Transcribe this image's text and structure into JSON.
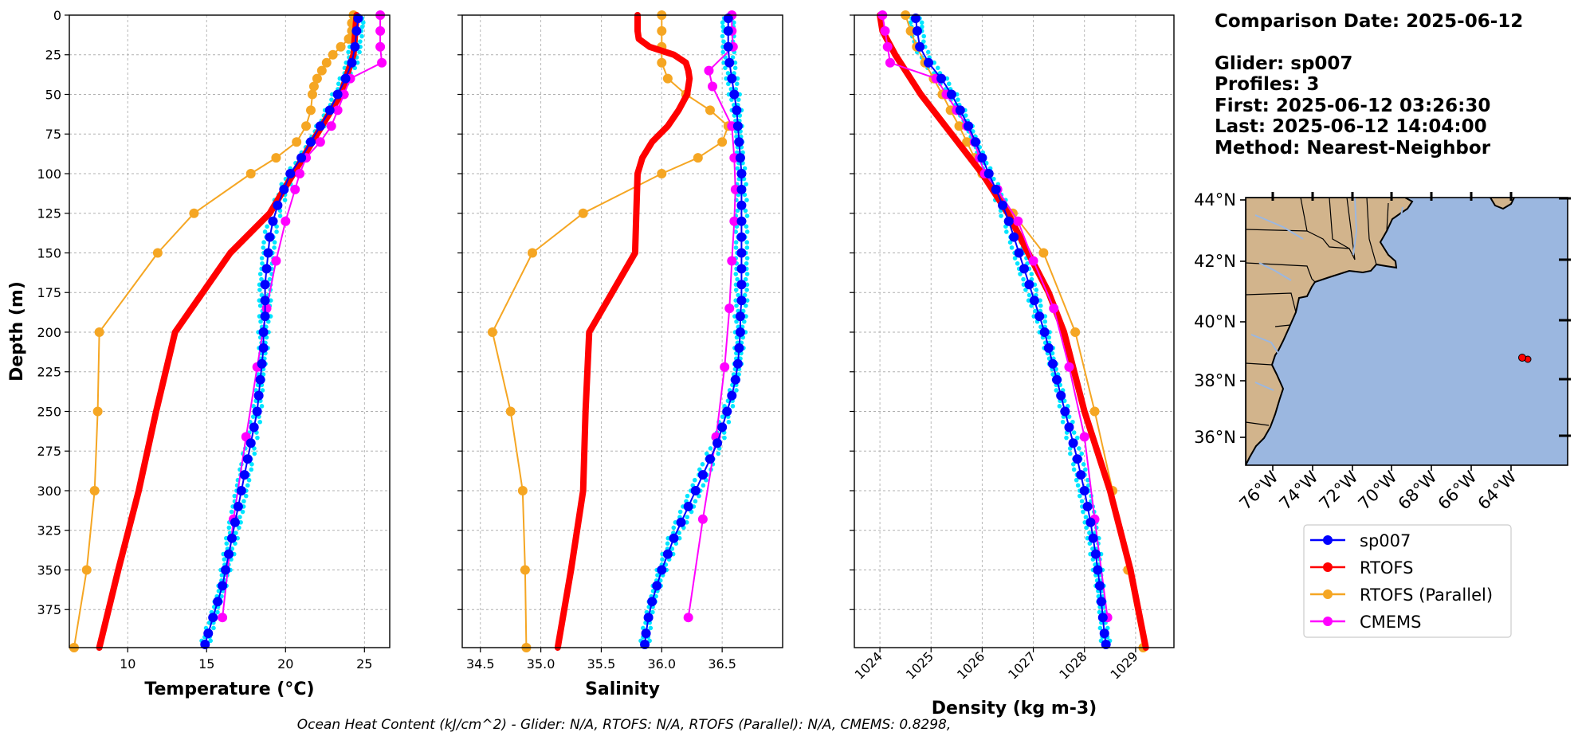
{
  "info": {
    "comparison_date": "Comparison Date: 2025-06-12",
    "glider": "Glider: sp007",
    "profiles": "Profiles: 3",
    "first": "First: 2025-06-12 03:26:30",
    "last": "Last: 2025-06-12 14:04:00",
    "method": "Method: Nearest-Neighbor"
  },
  "footer": "Ocean Heat Content (kJ/cm^2) - Glider: N/A,  RTOFS: N/A,  RTOFS (Parallel): N/A,  CMEMS: 0.8298,",
  "colors": {
    "glider": "#0000ff",
    "glider_profiles": "#00e5ff",
    "rtofs": "#ff0000",
    "rtofs_parallel": "#f5a623",
    "cmems": "#ff00ff",
    "grid": "#b0b0b0",
    "land": "#d2b48c",
    "ocean": "#9bb7e0"
  },
  "chart_data": [
    {
      "type": "line",
      "xlabel": "Temperature (°C)",
      "ylabel": "Depth (m)",
      "xlim": [
        6.3,
        26.6
      ],
      "ylim": [
        399,
        0
      ],
      "xticks": [
        "10",
        "15",
        "20",
        "25"
      ],
      "yticks": [
        "0",
        "25",
        "50",
        "75",
        "100",
        "125",
        "150",
        "175",
        "200",
        "225",
        "250",
        "275",
        "300",
        "325",
        "350",
        "375"
      ],
      "grid": true,
      "series": [
        {
          "name": "sp007",
          "depth": [
            2,
            10,
            20,
            30,
            40,
            50,
            60,
            70,
            80,
            90,
            100,
            110,
            120,
            130,
            140,
            150,
            160,
            170,
            180,
            190,
            200,
            210,
            220,
            230,
            240,
            250,
            260,
            270,
            280,
            290,
            300,
            310,
            320,
            330,
            340,
            350,
            360,
            370,
            380,
            390,
            397
          ],
          "values": [
            24.6,
            24.5,
            24.4,
            24.2,
            23.8,
            23.3,
            22.8,
            22.2,
            21.6,
            21.0,
            20.3,
            19.9,
            19.5,
            19.2,
            19.0,
            18.9,
            18.8,
            18.7,
            18.7,
            18.7,
            18.6,
            18.6,
            18.5,
            18.4,
            18.3,
            18.2,
            18.0,
            17.8,
            17.6,
            17.4,
            17.2,
            17.0,
            16.8,
            16.6,
            16.4,
            16.2,
            16.0,
            15.7,
            15.4,
            15.1,
            14.9
          ]
        },
        {
          "name": "RTOFS",
          "depth": [
            0,
            25,
            50,
            75,
            100,
            125,
            150,
            200,
            250,
            300,
            350,
            399
          ],
          "values": [
            24.5,
            24.3,
            23.5,
            22.0,
            20.5,
            19.0,
            16.5,
            13.0,
            11.8,
            10.7,
            9.4,
            8.2
          ]
        },
        {
          "name": "RTOFS (Parallel)",
          "depth": [
            0,
            5,
            10,
            15,
            20,
            25,
            30,
            35,
            40,
            45,
            50,
            60,
            70,
            80,
            90,
            100,
            125,
            150,
            200,
            250,
            300,
            350,
            399
          ],
          "values": [
            24.3,
            24.2,
            24.2,
            24.0,
            23.5,
            23.0,
            22.6,
            22.3,
            22.0,
            21.8,
            21.7,
            21.6,
            21.3,
            20.7,
            19.4,
            17.8,
            14.2,
            11.9,
            8.2,
            8.1,
            7.9,
            7.4,
            6.6
          ]
        },
        {
          "name": "CMEMS",
          "depth": [
            0,
            10,
            20,
            30,
            40,
            50,
            60,
            70,
            80,
            90,
            100,
            110,
            130,
            155,
            185,
            222,
            266,
            318,
            380
          ],
          "values": [
            26.0,
            26.0,
            26.0,
            26.1,
            24.1,
            23.7,
            23.3,
            22.9,
            22.2,
            21.3,
            20.9,
            20.6,
            20.0,
            19.4,
            18.8,
            18.2,
            17.5,
            16.7,
            16.0
          ]
        }
      ]
    },
    {
      "type": "line",
      "xlabel": "Salinity",
      "ylabel": "Depth (m)",
      "xlim": [
        34.35,
        37.0
      ],
      "ylim": [
        399,
        0
      ],
      "xticks": [
        "34.5",
        "35.0",
        "35.5",
        "36.0",
        "36.5"
      ],
      "grid": true,
      "series": [
        {
          "name": "sp007",
          "depth": [
            2,
            10,
            20,
            30,
            40,
            50,
            60,
            70,
            80,
            90,
            100,
            110,
            120,
            130,
            140,
            150,
            160,
            170,
            180,
            190,
            200,
            210,
            220,
            230,
            240,
            250,
            260,
            270,
            280,
            290,
            300,
            310,
            320,
            330,
            340,
            350,
            360,
            370,
            380,
            390,
            397
          ],
          "values": [
            36.55,
            36.55,
            36.55,
            36.56,
            36.58,
            36.6,
            36.62,
            36.63,
            36.64,
            36.65,
            36.66,
            36.66,
            36.66,
            36.66,
            36.66,
            36.66,
            36.66,
            36.66,
            36.66,
            36.65,
            36.65,
            36.64,
            36.63,
            36.61,
            36.58,
            36.54,
            36.5,
            36.46,
            36.4,
            36.34,
            36.28,
            36.22,
            36.16,
            36.1,
            36.05,
            36.0,
            35.96,
            35.92,
            35.89,
            35.87,
            35.86
          ]
        },
        {
          "name": "RTOFS",
          "depth": [
            0,
            10,
            15,
            20,
            25,
            30,
            35,
            40,
            50,
            60,
            70,
            80,
            90,
            100,
            125,
            150,
            200,
            250,
            300,
            350,
            399
          ],
          "values": [
            35.8,
            35.8,
            35.81,
            35.9,
            36.1,
            36.2,
            36.22,
            36.23,
            36.21,
            36.14,
            36.05,
            35.92,
            35.84,
            35.8,
            35.79,
            35.78,
            35.4,
            35.37,
            35.35,
            35.25,
            35.14
          ]
        },
        {
          "name": "RTOFS (Parallel)",
          "depth": [
            0,
            10,
            20,
            30,
            40,
            50,
            60,
            70,
            80,
            90,
            100,
            125,
            150,
            200,
            250,
            300,
            350,
            399
          ],
          "values": [
            36.0,
            36.0,
            36.0,
            36.0,
            36.05,
            36.2,
            36.4,
            36.55,
            36.5,
            36.3,
            36.0,
            35.35,
            34.93,
            34.6,
            34.75,
            34.85,
            34.87,
            34.88
          ]
        },
        {
          "name": "CMEMS",
          "depth": [
            0,
            10,
            20,
            35,
            45,
            70,
            90,
            110,
            130,
            155,
            185,
            222,
            266,
            318,
            380
          ],
          "values": [
            36.58,
            36.58,
            36.59,
            36.39,
            36.42,
            36.58,
            36.6,
            36.61,
            36.6,
            36.58,
            36.56,
            36.52,
            36.45,
            36.34,
            36.22
          ]
        }
      ]
    },
    {
      "type": "line",
      "xlabel": "Density (kg m-3)",
      "ylabel": "Depth (m)",
      "xlim": [
        1023.5,
        1029.75
      ],
      "ylim": [
        399,
        0
      ],
      "xticks": [
        "1024",
        "1025",
        "1026",
        "1027",
        "1028",
        "1029"
      ],
      "grid": true,
      "series": [
        {
          "name": "sp007",
          "depth": [
            2,
            10,
            20,
            30,
            40,
            50,
            60,
            70,
            80,
            90,
            100,
            110,
            120,
            130,
            140,
            150,
            160,
            170,
            180,
            190,
            200,
            210,
            220,
            230,
            240,
            250,
            260,
            270,
            280,
            290,
            300,
            310,
            320,
            330,
            340,
            350,
            360,
            370,
            380,
            390,
            397
          ],
          "values": [
            1024.7,
            1024.73,
            1024.78,
            1024.95,
            1025.2,
            1025.4,
            1025.57,
            1025.73,
            1025.87,
            1026.0,
            1026.13,
            1026.27,
            1026.4,
            1026.52,
            1026.62,
            1026.72,
            1026.82,
            1026.92,
            1027.02,
            1027.12,
            1027.22,
            1027.3,
            1027.38,
            1027.46,
            1027.54,
            1027.62,
            1027.7,
            1027.78,
            1027.86,
            1027.93,
            1028.0,
            1028.06,
            1028.12,
            1028.17,
            1028.22,
            1028.26,
            1028.3,
            1028.33,
            1028.36,
            1028.39,
            1028.42
          ]
        },
        {
          "name": "RTOFS",
          "depth": [
            0,
            10,
            25,
            50,
            75,
            100,
            125,
            150,
            175,
            200,
            250,
            300,
            350,
            399
          ],
          "values": [
            1024.0,
            1024.05,
            1024.3,
            1024.8,
            1025.4,
            1026.0,
            1026.5,
            1026.9,
            1027.3,
            1027.6,
            1028.0,
            1028.5,
            1028.9,
            1029.2
          ]
        },
        {
          "name": "RTOFS (Parallel)",
          "depth": [
            0,
            10,
            20,
            30,
            40,
            50,
            60,
            70,
            80,
            90,
            100,
            125,
            150,
            200,
            250,
            300,
            350,
            399
          ],
          "values": [
            1024.5,
            1024.6,
            1024.72,
            1024.88,
            1025.05,
            1025.22,
            1025.38,
            1025.55,
            1025.7,
            1025.85,
            1026.0,
            1026.6,
            1027.2,
            1027.82,
            1028.2,
            1028.55,
            1028.85,
            1029.15
          ]
        },
        {
          "name": "CMEMS",
          "depth": [
            0,
            10,
            20,
            30,
            40,
            50,
            60,
            70,
            80,
            90,
            100,
            110,
            130,
            155,
            185,
            222,
            266,
            318,
            380
          ],
          "values": [
            1024.05,
            1024.1,
            1024.15,
            1024.2,
            1025.1,
            1025.3,
            1025.5,
            1025.7,
            1025.85,
            1025.95,
            1026.05,
            1026.3,
            1026.7,
            1027.0,
            1027.4,
            1027.7,
            1028.0,
            1028.2,
            1028.45
          ]
        }
      ]
    }
  ],
  "map": {
    "lat_ticks": [
      "44°N",
      "42°N",
      "40°N",
      "38°N",
      "36°N"
    ],
    "lon_ticks": [
      "76°W",
      "74°W",
      "72°W",
      "70°W",
      "68°W",
      "66°W",
      "64°W"
    ]
  },
  "legend": {
    "position": "below map",
    "items": [
      {
        "label": "sp007",
        "color": "#0000ff"
      },
      {
        "label": "RTOFS",
        "color": "#ff0000"
      },
      {
        "label": "RTOFS (Parallel)",
        "color": "#f5a623"
      },
      {
        "label": "CMEMS",
        "color": "#ff00ff"
      }
    ]
  }
}
